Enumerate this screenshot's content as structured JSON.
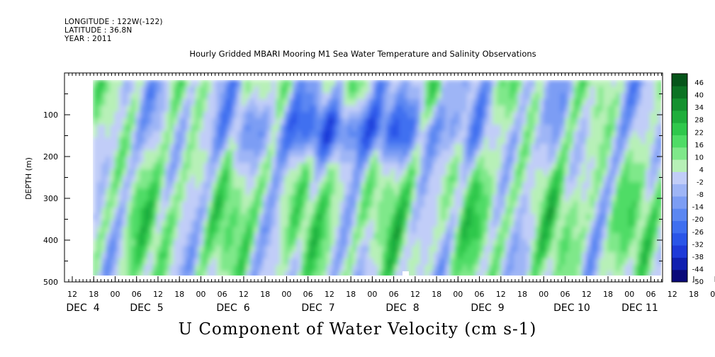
{
  "header": {
    "longitude": "LONGITUDE : 122W(-122)",
    "latitude": "LATITUDE : 36.8N",
    "year": "YEAR : 2011"
  },
  "chart_data": {
    "type": "heatmap",
    "title": "Hourly Gridded MBARI Mooring M1 Sea Water Temperature and Salinity Observations",
    "xlabel": "U Component of Water Velocity (cm s-1)",
    "ylabel": "DEPTH (m)",
    "ylim": [
      500,
      0
    ],
    "y_reversed": true,
    "y_ticks": [
      100,
      200,
      300,
      400,
      500
    ],
    "x_range_hours": [
      "DEC 4 06:00",
      "DEC 11 12:00"
    ],
    "x_hour_ticks": [
      "12",
      "18",
      "00",
      "06",
      "12",
      "18",
      "00",
      "06",
      "12",
      "18",
      "00",
      "06",
      "12",
      "18",
      "00",
      "06",
      "12",
      "18",
      "00",
      "06",
      "12",
      "18",
      "00",
      "06",
      "12",
      "18",
      "00",
      "06",
      "12",
      "18",
      "00",
      "06"
    ],
    "x_day_labels": [
      "DEC  4",
      "DEC  5",
      "DEC  6",
      "DEC  7",
      "DEC  8",
      "DEC  9",
      "DEC 10",
      "DEC 11"
    ],
    "colorbar": {
      "levels": [
        -50,
        -44,
        -38,
        -32,
        -26,
        -20,
        -14,
        -8,
        -2,
        4,
        10,
        16,
        22,
        28,
        34,
        40,
        46
      ],
      "labels": [
        "46",
        "40",
        "34",
        "28",
        "22",
        "16",
        "10",
        "4",
        "-2",
        "-8",
        "-14",
        "-20",
        "-26",
        "-32",
        "-38",
        "-44",
        "-50"
      ],
      "colors_low_to_high": [
        "#0a0a7a",
        "#1020b0",
        "#1e3ad8",
        "#2a55e8",
        "#3f6ff0",
        "#5b87f2",
        "#7c9df4",
        "#9eb5f6",
        "#c1cdf8",
        "#b7f0b7",
        "#7fe88a",
        "#4fdc66",
        "#2fc84c",
        "#1fae3c",
        "#14912f",
        "#0c7324",
        "#06551a"
      ]
    },
    "pattern": "depth-time field of U velocity: mostly -14 to +22 cm/s; stronger negative (blue) values 50–200 m during DEC 5–8, positive (green) columns below 200 m throughout"
  }
}
